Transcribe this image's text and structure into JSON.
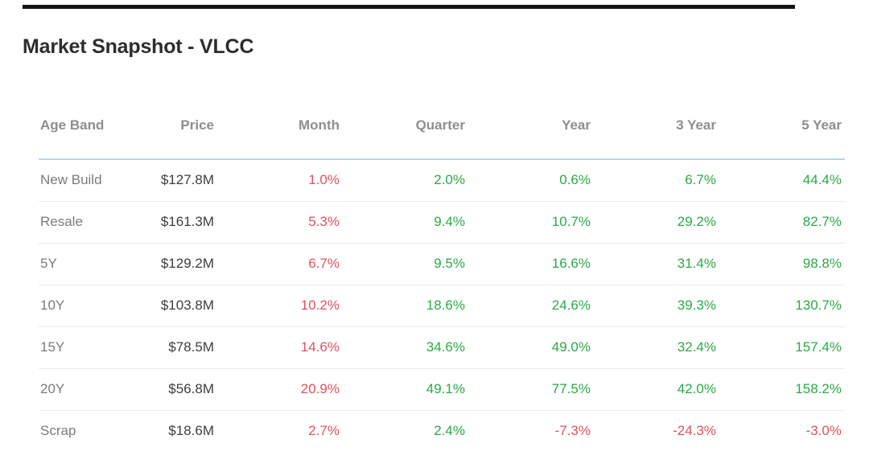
{
  "page": {
    "title": "Market Snapshot - VLCC"
  },
  "colors": {
    "positive_change": "#2aaa46",
    "negative_change": "#e0515e",
    "header_text": "#8e8e8e",
    "age_band_text": "#7b7b7b",
    "price_text": "#3e3e3e",
    "title_text": "#2d2d2d",
    "table_top_rule": "#afd7f1",
    "row_divider": "#ececec",
    "top_bar": "#141414"
  },
  "table": {
    "columns": [
      "Age Band",
      "Price",
      "Month",
      "Quarter",
      "Year",
      "3 Year",
      "5 Year"
    ],
    "change_column_keys": [
      "month",
      "quarter",
      "year",
      "3-year",
      "5-year"
    ],
    "rows": [
      {
        "age_band": "New Build",
        "price": "$127.8M",
        "changes": [
          {
            "value": "1.0%",
            "trend": "negative"
          },
          {
            "value": "2.0%",
            "trend": "positive"
          },
          {
            "value": "0.6%",
            "trend": "positive"
          },
          {
            "value": "6.7%",
            "trend": "positive"
          },
          {
            "value": "44.4%",
            "trend": "positive"
          }
        ]
      },
      {
        "age_band": "Resale",
        "price": "$161.3M",
        "changes": [
          {
            "value": "5.3%",
            "trend": "negative"
          },
          {
            "value": "9.4%",
            "trend": "positive"
          },
          {
            "value": "10.7%",
            "trend": "positive"
          },
          {
            "value": "29.2%",
            "trend": "positive"
          },
          {
            "value": "82.7%",
            "trend": "positive"
          }
        ]
      },
      {
        "age_band": "5Y",
        "price": "$129.2M",
        "changes": [
          {
            "value": "6.7%",
            "trend": "negative"
          },
          {
            "value": "9.5%",
            "trend": "positive"
          },
          {
            "value": "16.6%",
            "trend": "positive"
          },
          {
            "value": "31.4%",
            "trend": "positive"
          },
          {
            "value": "98.8%",
            "trend": "positive"
          }
        ]
      },
      {
        "age_band": "10Y",
        "price": "$103.8M",
        "changes": [
          {
            "value": "10.2%",
            "trend": "negative"
          },
          {
            "value": "18.6%",
            "trend": "positive"
          },
          {
            "value": "24.6%",
            "trend": "positive"
          },
          {
            "value": "39.3%",
            "trend": "positive"
          },
          {
            "value": "130.7%",
            "trend": "positive"
          }
        ]
      },
      {
        "age_band": "15Y",
        "price": "$78.5M",
        "changes": [
          {
            "value": "14.6%",
            "trend": "negative"
          },
          {
            "value": "34.6%",
            "trend": "positive"
          },
          {
            "value": "49.0%",
            "trend": "positive"
          },
          {
            "value": "32.4%",
            "trend": "positive"
          },
          {
            "value": "157.4%",
            "trend": "positive"
          }
        ]
      },
      {
        "age_band": "20Y",
        "price": "$56.8M",
        "changes": [
          {
            "value": "20.9%",
            "trend": "negative"
          },
          {
            "value": "49.1%",
            "trend": "positive"
          },
          {
            "value": "77.5%",
            "trend": "positive"
          },
          {
            "value": "42.0%",
            "trend": "positive"
          },
          {
            "value": "158.2%",
            "trend": "positive"
          }
        ]
      },
      {
        "age_band": "Scrap",
        "price": "$18.6M",
        "changes": [
          {
            "value": "2.7%",
            "trend": "negative"
          },
          {
            "value": "2.4%",
            "trend": "positive"
          },
          {
            "value": "-7.3%",
            "trend": "negative"
          },
          {
            "value": "-24.3%",
            "trend": "negative"
          },
          {
            "value": "-3.0%",
            "trend": "negative"
          }
        ]
      }
    ]
  }
}
